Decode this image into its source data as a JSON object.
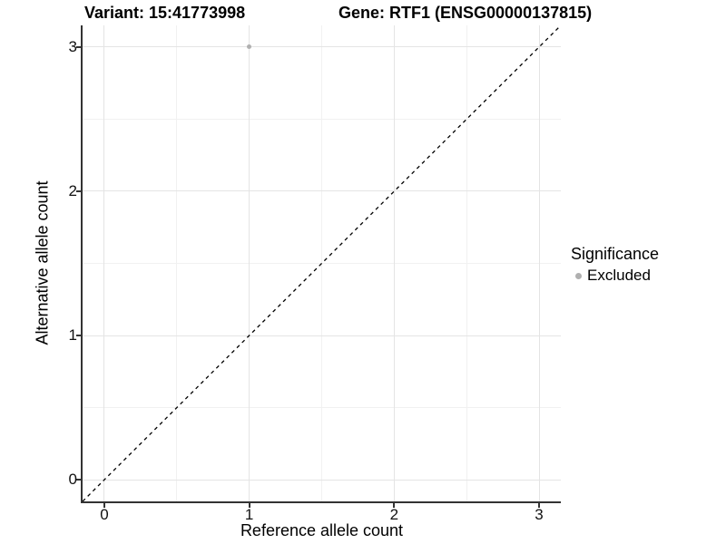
{
  "chart_data": {
    "type": "scatter",
    "title_left": "Variant: 15:41773998",
    "title_right": "Gene: RTF1 (ENSG00000137815)",
    "xlabel": "Reference allele count",
    "ylabel": "Alternative allele count",
    "xlim": [
      -0.15,
      3.15
    ],
    "ylim": [
      -0.15,
      3.15
    ],
    "x_major_ticks": [
      0,
      1,
      2,
      3
    ],
    "y_major_ticks": [
      0,
      1,
      2,
      3
    ],
    "x_minor_ticks": [
      0.5,
      1.5,
      2.5
    ],
    "y_minor_ticks": [
      0.5,
      1.5,
      2.5
    ],
    "grid": true,
    "legend_position": "right",
    "abline": {
      "slope": 1,
      "intercept": 0,
      "style": "dashed",
      "color": "#000000"
    },
    "series": [
      {
        "name": "Excluded",
        "color": "#b0b0b0",
        "points": [
          {
            "x": 1,
            "y": 3
          }
        ]
      }
    ],
    "legend": {
      "title": "Significance",
      "items": [
        {
          "label": "Excluded",
          "color": "#b0b0b0"
        }
      ]
    },
    "colors": {
      "grid_major": "#e4e4e4",
      "grid_minor": "#f1f1f1",
      "axis_line": "#333333",
      "point": "#b0b0b0",
      "background": "#ffffff"
    }
  }
}
